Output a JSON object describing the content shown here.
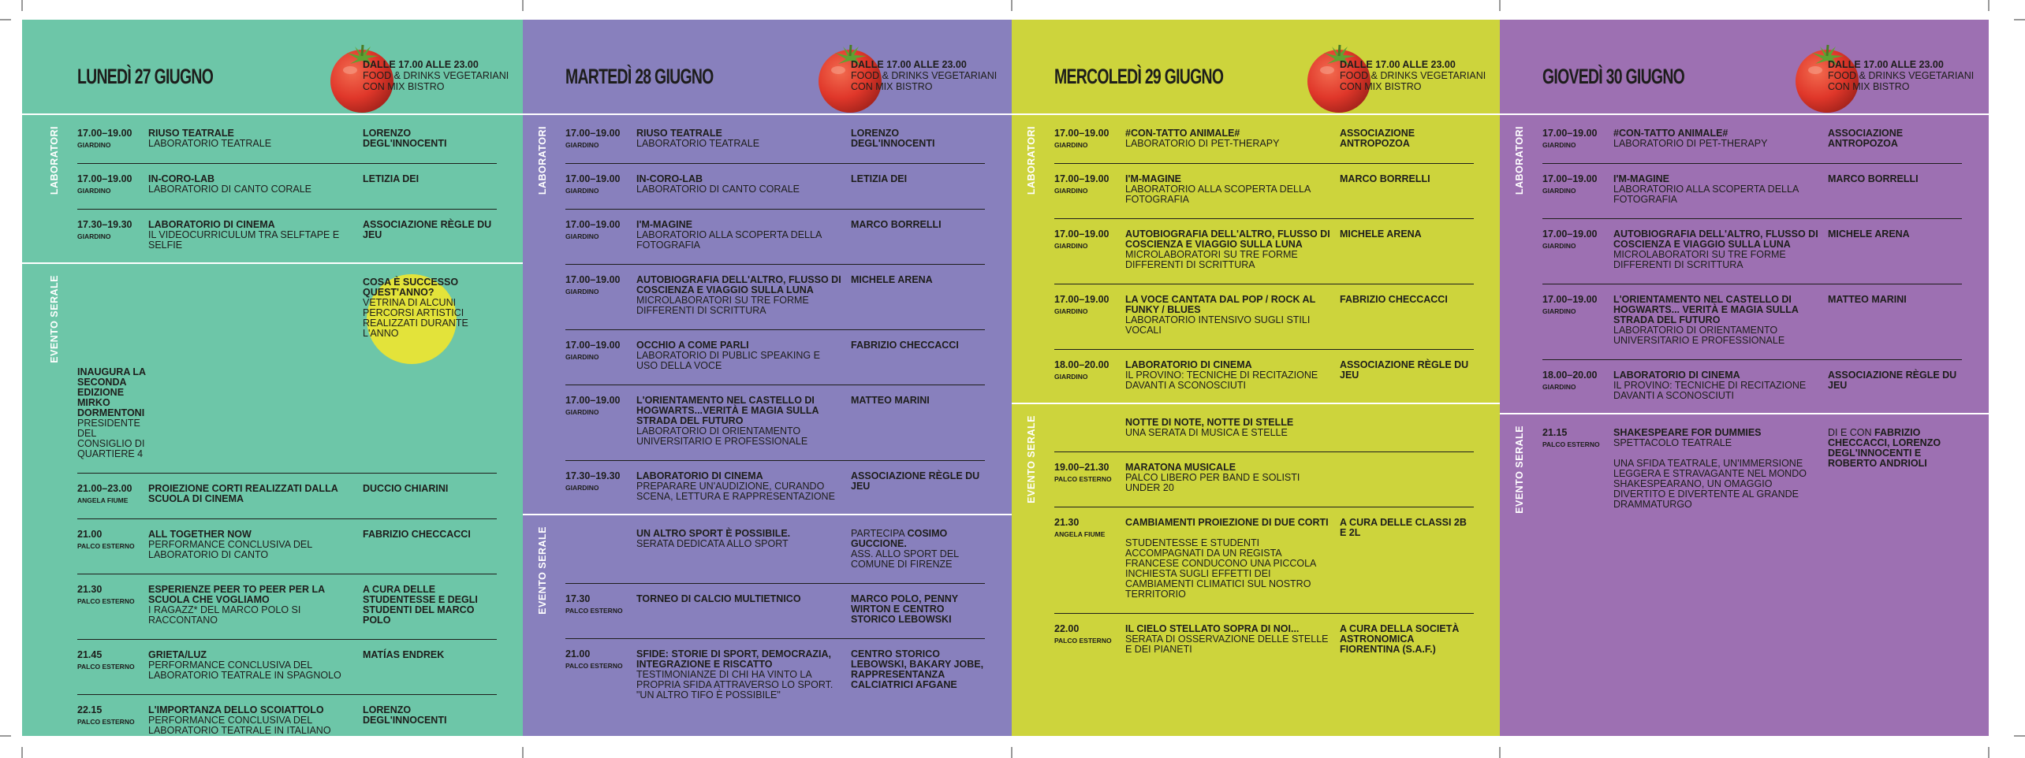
{
  "days": [
    {
      "title": "LUNEDÌ 27 GIUGNO",
      "note": [
        "DALLE 17.00 ALLE 23.00",
        "FOOD & DRINKS VEGETARIANI",
        "CON MIX BISTRO"
      ],
      "sections": [
        {
          "label": "LABORATORI",
          "entries": [
            {
              "time": "17.00–19.00",
              "place": "GIARDINO",
              "title": "RIUSO TEATRALE",
              "desc": "LABORATORIO TEATRALE",
              "host": "LORENZO DEGL'INNOCENTI"
            },
            {
              "time": "17.00–19.00",
              "place": "GIARDINO",
              "title": "IN-CORO-LAB",
              "desc": "LABORATORIO DI CANTO CORALE",
              "host": "LETIZIA DEI"
            },
            {
              "time": "17.30–19.30",
              "place": "GIARDINO",
              "title": "LABORATORIO DI CINEMA",
              "desc": "IL VIDEOCURRICULUM TRA SELFTAPE E SELFIE",
              "host": "ASSOCIAZIONE RÈGLE DU JEU"
            }
          ]
        },
        {
          "label": "EVENTO SERALE",
          "entries": [
            {
              "title": "COSA È SUCCESSO QUEST'ANNO?",
              "desc": "VETRINA DI ALCUNI PERCORSI ARTISTICI REALIZZATI DURANTE L'ANNO",
              "host": "INAUGURA LA SECONDA EDIZIONE MIRKO DORMENTONI",
              "host_desc": "PRESIDENTE DEL CONSIGLIO DI QUARTIERE 4"
            },
            {
              "time": "21.00–23.00",
              "place": "ANGELA FIUME",
              "title": "PROIEZIONE CORTI REALIZZATI DALLA SCUOLA DI CINEMA",
              "host": "DUCCIO CHIARINI"
            },
            {
              "time": "21.00",
              "place": "PALCO ESTERNO",
              "title": "ALL TOGETHER NOW",
              "desc": "PERFORMANCE CONCLUSIVA DEL LABORATORIO DI CANTO",
              "host": "FABRIZIO CHECCACCI"
            },
            {
              "time": "21.30",
              "place": "PALCO ESTERNO",
              "title": "ESPERIENZE PEER TO PEER PER LA SCUOLA CHE VOGLIAMO",
              "desc": "I RAGAZZ* DEL MARCO POLO SI RACCONTANO",
              "host": "A CURA DELLE STUDENTESSE E DEGLI STUDENTI DEL MARCO POLO"
            },
            {
              "time": "21.45",
              "place": "PALCO ESTERNO",
              "title": "GRIETA/LUZ",
              "desc": "PERFORMANCE CONCLUSIVA DEL LABORATORIO TEATRALE IN SPAGNOLO",
              "host": "MATÍAS ENDREK"
            },
            {
              "time": "22.15",
              "place": "PALCO ESTERNO",
              "title": "L'IMPORTANZA DELLO SCOIATTOLO",
              "desc": "PERFORMANCE CONCLUSIVA DEL LABORATORIO TEATRALE IN ITALIANO",
              "host": "LORENZO DEGL'INNOCENTI"
            }
          ]
        }
      ]
    },
    {
      "title": "MARTEDÌ 28 GIUGNO",
      "note": [
        "DALLE 17.00 ALLE 23.00",
        "FOOD & DRINKS VEGETARIANI",
        "CON MIX BISTRO"
      ],
      "sections": [
        {
          "label": "LABORATORI",
          "entries": [
            {
              "time": "17.00–19.00",
              "place": "GIARDINO",
              "title": "RIUSO TEATRALE",
              "desc": "LABORATORIO TEATRALE",
              "host": "LORENZO DEGL'INNOCENTI"
            },
            {
              "time": "17.00–19.00",
              "place": "GIARDINO",
              "title": "IN-CORO-LAB",
              "desc": "LABORATORIO DI CANTO CORALE",
              "host": "LETIZIA DEI"
            },
            {
              "time": "17.00–19.00",
              "place": "GIARDINO",
              "title": "I'M-MAGINE",
              "desc": "LABORATORIO ALLA SCOPERTA DELLA FOTOGRAFIA",
              "host": "MARCO BORRELLI"
            },
            {
              "time": "17.00–19.00",
              "place": "GIARDINO",
              "title": "AUTOBIOGRAFIA DELL'ALTRO, FLUSSO DI COSCIENZA E VIAGGIO SULLA LUNA",
              "desc": "MICROLABORATORI SU TRE FORME DIFFERENTI DI SCRITTURA",
              "host": "MICHELE ARENA"
            },
            {
              "time": "17.00–19.00",
              "place": "GIARDINO",
              "title": "OCCHIO A COME PARLI",
              "desc": "LABORATORIO DI PUBLIC SPEAKING E USO DELLA VOCE",
              "host": "FABRIZIO CHECCACCI"
            },
            {
              "time": "17.00–19.00",
              "place": "GIARDINO",
              "title": "L'ORIENTAMENTO NEL CASTELLO DI HOGWARTS...VERITÀ E MAGIA SULLA STRADA DEL FUTURO",
              "desc": "LABORATORIO DI ORIENTAMENTO UNIVERSITARIO E PROFESSIONALE",
              "host": "MATTEO MARINI"
            },
            {
              "time": "17.30–19.30",
              "place": "GIARDINO",
              "title": "LABORATORIO DI CINEMA",
              "desc": "PREPARARE UN'AUDIZIONE, CURANDO SCENA, LETTURA E RAPPRESENTAZIONE",
              "host": "ASSOCIAZIONE RÈGLE DU JEU"
            }
          ]
        },
        {
          "label": "EVENTO SERALE",
          "entries": [
            {
              "title": "UN ALTRO SPORT È POSSIBILE.",
              "desc": "SERATA DEDICATA ALLO SPORT",
              "host_intro": "PARTECIPA",
              "host": "COSIMO GUCCIONE.",
              "host_desc": "ASS. ALLO SPORT DEL COMUNE DI FIRENZE"
            },
            {
              "time": "17.30",
              "place": "PALCO ESTERNO",
              "title": "TORNEO DI CALCIO MULTIETNICO",
              "host": "MARCO POLO, PENNY WIRTON E CENTRO STORICO LEBOWSKI"
            },
            {
              "time": "21.00",
              "place": "PALCO ESTERNO",
              "title": "SFIDE: STORIE DI SPORT, DEMOCRAZIA, INTEGRAZIONE E RISCATTO",
              "desc": "TESTIMONIANZE DI CHI HA VINTO LA PROPRIA SFIDA ATTRAVERSO LO SPORT. \"UN ALTRO TIFO È POSSIBILE\"",
              "host": "CENTRO STORICO LEBOWSKI, BAKARY JOBE, RAPPRESENTANZA CALCIATRICI AFGANE"
            }
          ]
        }
      ]
    },
    {
      "title": "MERCOLEDÌ 29 GIUGNO",
      "note": [
        "DALLE 17.00 ALLE 23.00",
        "FOOD & DRINKS VEGETARIANI",
        "CON MIX BISTRO"
      ],
      "sections": [
        {
          "label": "LABORATORI",
          "entries": [
            {
              "time": "17.00–19.00",
              "place": "GIARDINO",
              "title": "#CON-TATTO ANIMALE#",
              "desc": "LABORATORIO DI PET-THERAPY",
              "host": "ASSOCIAZIONE ANTROPOZOA"
            },
            {
              "time": "17.00–19.00",
              "place": "GIARDINO",
              "title": "I'M-MAGINE",
              "desc": "LABORATORIO ALLA SCOPERTA DELLA FOTOGRAFIA",
              "host": "MARCO BORRELLI"
            },
            {
              "time": "17.00–19.00",
              "place": "GIARDINO",
              "title": "AUTOBIOGRAFIA DELL'ALTRO, FLUSSO DI COSCIENZA E VIAGGIO SULLA LUNA",
              "desc": "MICROLABORATORI SU TRE FORME DIFFERENTI DI SCRITTURA",
              "host": "MICHELE ARENA"
            },
            {
              "time": "17.00–19.00",
              "place": "GIARDINO",
              "title": "LA VOCE CANTATA DAL POP / ROCK AL FUNKY / BLUES",
              "desc": "LABORATORIO INTENSIVO SUGLI STILI VOCALI",
              "host": "FABRIZIO CHECCACCI"
            },
            {
              "time": "18.00–20.00",
              "place": "GIARDINO",
              "title": "LABORATORIO DI CINEMA",
              "desc": "IL PROVINO: TECNICHE DI RECITAZIONE DAVANTI A SCONOSCIUTI",
              "host": "ASSOCIAZIONE RÈGLE DU JEU"
            }
          ]
        },
        {
          "label": "EVENTO SERALE",
          "entries": [
            {
              "title": "NOTTE DI NOTE, NOTTE DI STELLE",
              "desc": "UNA SERATA DI MUSICA E STELLE"
            },
            {
              "time": "19.00–21.30",
              "place": "PALCO ESTERNO",
              "title": "MARATONA MUSICALE",
              "desc": "PALCO LIBERO PER BAND E SOLISTI UNDER 20"
            },
            {
              "time": "21.30",
              "place": "ANGELA FIUME",
              "title": "CAMBIAMENTI PROIEZIONE DI DUE CORTI",
              "desc2": "STUDENTESSE E STUDENTI ACCOMPAGNATI DA UN REGISTA FRANCESE CONDUCONO UNA PICCOLA INCHIESTA SUGLI EFFETTI DEI CAMBIAMENTI CLIMATICI SUL NOSTRO TERRITORIO",
              "host": "A CURA DELLE CLASSI 2B E 2L"
            },
            {
              "time": "22.00",
              "place": "PALCO ESTERNO",
              "title": "IL CIELO STELLATO SOPRA DI NOI...",
              "desc": "SERATA DI OSSERVAZIONE DELLE STELLE E DEI PIANETI",
              "host": "A CURA DELLA SOCIETÀ ASTRONOMICA FIORENTINA (S.A.F.)"
            }
          ]
        }
      ]
    },
    {
      "title": "GIOVEDÌ 30 GIUGNO",
      "note": [
        "DALLE 17.00 ALLE 23.00",
        "FOOD & DRINKS VEGETARIANI",
        "CON MIX BISTRO"
      ],
      "sections": [
        {
          "label": "LABORATORI",
          "entries": [
            {
              "time": "17.00–19.00",
              "place": "GIARDINO",
              "title": "#CON-TATTO ANIMALE#",
              "desc": "LABORATORIO DI PET-THERAPY",
              "host": "ASSOCIAZIONE ANTROPOZOA"
            },
            {
              "time": "17.00–19.00",
              "place": "GIARDINO",
              "title": "I'M-MAGINE",
              "desc": "LABORATORIO ALLA SCOPERTA DELLA FOTOGRAFIA",
              "host": "MARCO BORRELLI"
            },
            {
              "time": "17.00–19.00",
              "place": "GIARDINO",
              "title": "AUTOBIOGRAFIA DELL'ALTRO, FLUSSO DI COSCIENZA E VIAGGIO SULLA LUNA",
              "desc": "MICROLABORATORI SU TRE FORME DIFFERENTI DI SCRITTURA",
              "host": "MICHELE ARENA"
            },
            {
              "time": "17.00–19.00",
              "place": "GIARDINO",
              "title": "L'ORIENTAMENTO NEL CASTELLO DI HOGWARTS... VERITÀ E MAGIA SULLA STRADA DEL FUTURO",
              "desc": "LABORATORIO DI ORIENTAMENTO UNIVERSITARIO E PROFESSIONALE",
              "host": "MATTEO MARINI"
            },
            {
              "time": "18.00–20.00",
              "place": "GIARDINO",
              "title": "LABORATORIO DI CINEMA",
              "desc": "IL PROVINO: TECNICHE DI RECITAZIONE DAVANTI A SCONOSCIUTI",
              "host": "ASSOCIAZIONE RÈGLE DU JEU"
            }
          ]
        },
        {
          "label": "EVENTO SERALE",
          "entries": [
            {
              "time": "21.15",
              "place": "PALCO ESTERNO",
              "title": "SHAKESPEARE FOR DUMMIES",
              "desc": "SPETTACOLO TEATRALE",
              "desc2": "UNA SFIDA TEATRALE, UN'IMMERSIONE LEGGERA E STRAVAGANTE NEL MONDO SHAKESPEARANO, UN OMAGGIO DIVERTITO E DIVERTENTE AL GRANDE DRAMMATURGO",
              "host_intro": "DI E CON",
              "host": "FABRIZIO CHECCACCI, LORENZO DEGL'INNOCENTI E ROBERTO ANDRIOLI"
            }
          ]
        }
      ]
    }
  ]
}
